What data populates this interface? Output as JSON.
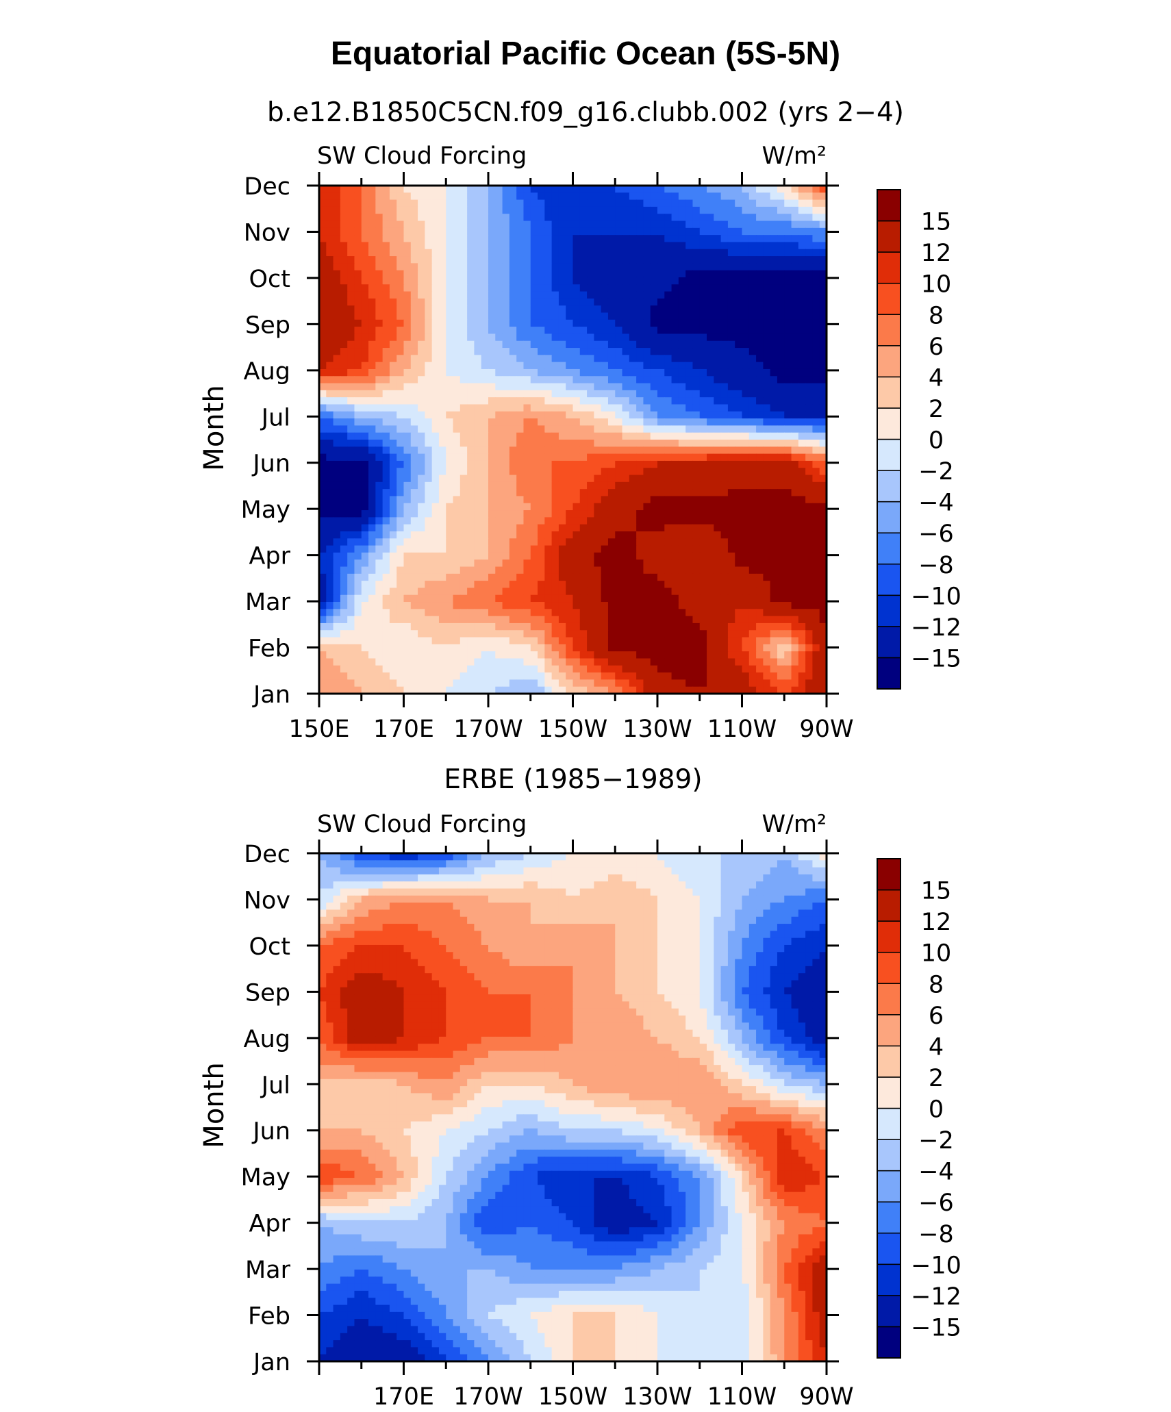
{
  "figure": {
    "title": "Equatorial Pacific Ocean (5S-5N)"
  },
  "colors": [
    "#00007f",
    "#001aa8",
    "#0033d0",
    "#1a55f0",
    "#4080f8",
    "#7aa8fa",
    "#a8c6fc",
    "#d6e8fd",
    "#fde9dc",
    "#fdc9a8",
    "#fca57e",
    "#fb7a4a",
    "#f85020",
    "#e02d08",
    "#b81c00",
    "#8a0000"
  ],
  "chart_data": [
    {
      "type": "heatmap",
      "subtitle": "b.e12.B1850C5CN.f09_g16.clubb.002 (yrs 2−4)",
      "left_label": "SW Cloud Forcing",
      "right_label": "W/m²",
      "xlabel": "",
      "ylabel": "Month",
      "xlim": [
        150,
        270
      ],
      "x_ticks": [
        150,
        170,
        190,
        210,
        230,
        250,
        270
      ],
      "x_tick_labels": [
        "150E",
        "170E",
        "170W",
        "150W",
        "130W",
        "110W",
        "90W"
      ],
      "y_tick_labels": [
        "Jan",
        "Feb",
        "Mar",
        "Apr",
        "May",
        "Jun",
        "Jul",
        "Aug",
        "Sep",
        "Oct",
        "Nov",
        "Dec"
      ],
      "x": [
        150,
        160,
        170,
        180,
        190,
        200,
        210,
        220,
        230,
        240,
        250,
        260,
        270
      ],
      "y": [
        "Jan",
        "Feb",
        "Mar",
        "Apr",
        "May",
        "Jun",
        "Jul",
        "Aug",
        "Sep",
        "Oct",
        "Nov",
        "Dec"
      ],
      "z": [
        [
          6,
          4,
          2,
          0,
          -2,
          -4,
          2,
          6,
          14,
          15,
          14,
          10,
          15
        ],
        [
          4,
          2,
          0,
          2,
          0,
          2,
          10,
          16,
          16,
          16,
          10,
          2,
          15
        ],
        [
          -14,
          0,
          4,
          6,
          8,
          10,
          12,
          16,
          16,
          14,
          12,
          16,
          16
        ],
        [
          -12,
          -6,
          2,
          2,
          4,
          8,
          14,
          16,
          14,
          12,
          16,
          16,
          16
        ],
        [
          -16,
          -16,
          -4,
          2,
          4,
          6,
          10,
          14,
          16,
          16,
          16,
          16,
          16
        ],
        [
          -16,
          -16,
          -8,
          0,
          4,
          8,
          8,
          10,
          12,
          12,
          14,
          14,
          8
        ],
        [
          -8,
          -4,
          -2,
          2,
          4,
          6,
          4,
          0,
          -6,
          -8,
          -10,
          -12,
          -12
        ],
        [
          12,
          10,
          4,
          0,
          -2,
          -4,
          -6,
          -8,
          -10,
          -12,
          -14,
          -16,
          -16
        ],
        [
          15,
          12,
          8,
          0,
          -4,
          -8,
          -10,
          -12,
          -16,
          -16,
          -16,
          -16,
          -16
        ],
        [
          14,
          10,
          6,
          0,
          -4,
          -8,
          -12,
          -14,
          -14,
          -16,
          -16,
          -16,
          -16
        ],
        [
          12,
          8,
          4,
          0,
          -4,
          -8,
          -12,
          -12,
          -12,
          -10,
          -8,
          -8,
          -6
        ],
        [
          12,
          8,
          2,
          0,
          -4,
          -10,
          -12,
          -10,
          -8,
          -6,
          -4,
          2,
          10
        ]
      ],
      "colorbar_levels": [
        -15,
        -12,
        -10,
        -8,
        -6,
        -4,
        -2,
        0,
        2,
        4,
        6,
        8,
        10,
        12,
        15
      ]
    },
    {
      "type": "heatmap",
      "subtitle": "ERBE (1985−1989)",
      "left_label": "SW Cloud Forcing",
      "right_label": "W/m²",
      "xlabel": "",
      "ylabel": "Month",
      "xlim": [
        150,
        270
      ],
      "x_ticks": [
        170,
        190,
        210,
        230,
        250,
        270
      ],
      "x_tick_labels": [
        "170E",
        "170W",
        "150W",
        "130W",
        "110W",
        "90W"
      ],
      "y_tick_labels": [
        "Jan",
        "Feb",
        "Mar",
        "Apr",
        "May",
        "Jun",
        "Jul",
        "Aug",
        "Sep",
        "Oct",
        "Nov",
        "Dec"
      ],
      "x": [
        150,
        160,
        170,
        180,
        190,
        200,
        210,
        220,
        230,
        240,
        250,
        260,
        270
      ],
      "y": [
        "Jan",
        "Feb",
        "Mar",
        "Apr",
        "May",
        "Jun",
        "Jul",
        "Aug",
        "Sep",
        "Oct",
        "Nov",
        "Dec"
      ],
      "z": [
        [
          -12,
          -14,
          -14,
          -10,
          -6,
          -2,
          2,
          2,
          0,
          -2,
          -2,
          6,
          12
        ],
        [
          -10,
          -12,
          -10,
          -6,
          -2,
          0,
          2,
          2,
          0,
          -2,
          -2,
          6,
          14
        ],
        [
          -6,
          -8,
          -6,
          -4,
          -4,
          -6,
          -6,
          -6,
          -4,
          -2,
          0,
          8,
          14
        ],
        [
          -4,
          -2,
          -2,
          -4,
          -10,
          -8,
          -10,
          -14,
          -12,
          -6,
          0,
          6,
          8
        ],
        [
          10,
          8,
          4,
          -2,
          -6,
          -10,
          -12,
          -12,
          -10,
          -6,
          2,
          12,
          10
        ],
        [
          4,
          4,
          2,
          0,
          -2,
          -4,
          -2,
          -2,
          0,
          4,
          10,
          10,
          6
        ],
        [
          4,
          2,
          4,
          6,
          2,
          2,
          4,
          6,
          6,
          6,
          2,
          -2,
          -4
        ],
        [
          8,
          14,
          12,
          10,
          8,
          8,
          6,
          6,
          4,
          2,
          -4,
          -10,
          -14
        ],
        [
          10,
          14,
          12,
          10,
          8,
          8,
          6,
          4,
          2,
          0,
          -8,
          -12,
          -14
        ],
        [
          8,
          10,
          10,
          8,
          6,
          4,
          6,
          4,
          2,
          0,
          -6,
          -10,
          -12
        ],
        [
          -2,
          4,
          6,
          6,
          4,
          4,
          2,
          4,
          2,
          0,
          -4,
          -6,
          -8
        ],
        [
          -4,
          -10,
          -12,
          -10,
          -4,
          -2,
          0,
          0,
          0,
          -2,
          -2,
          -4,
          2
        ]
      ],
      "colorbar_levels": [
        -15,
        -12,
        -10,
        -8,
        -6,
        -4,
        -2,
        0,
        2,
        4,
        6,
        8,
        10,
        12,
        15
      ]
    }
  ]
}
